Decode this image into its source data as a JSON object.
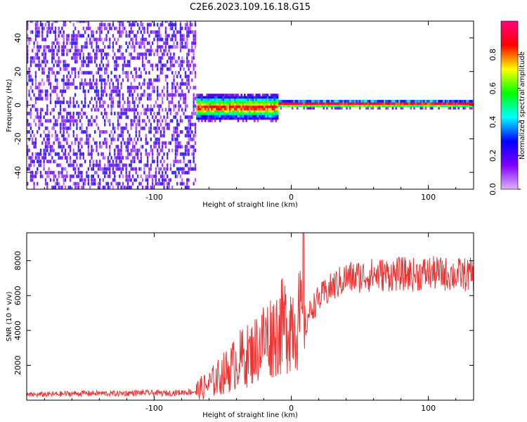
{
  "title": "C2E6.2023.109.16.18.G15",
  "chart_data": [
    {
      "type": "heatmap",
      "xlabel": "Height of straight line (km)",
      "ylabel": "Frequency (Hz)",
      "xlim": [
        -193,
        133
      ],
      "ylim": [
        -50,
        50
      ],
      "x_ticks": [
        -100,
        0,
        100
      ],
      "x_tick_labels": [
        "-100",
        "0",
        "100"
      ],
      "y_ticks": [
        -40,
        -20,
        0,
        20,
        40
      ],
      "y_tick_labels": [
        "-40",
        "-20",
        "0",
        "20",
        "40"
      ],
      "colorbar": {
        "label": "Normalized spectral amplitude",
        "range": [
          0,
          1
        ],
        "ticks": [
          0.0,
          0.2,
          0.4,
          0.6,
          0.8
        ],
        "tick_labels": [
          "0.0",
          "0.2",
          "0.4",
          "0.6",
          "0.8"
        ],
        "colors": [
          "#e0b0ff",
          "#7f00ff",
          "#0000ff",
          "#00ffff",
          "#00ff00",
          "#ffff00",
          "#ff0000",
          "#ff0080"
        ]
      },
      "regions": [
        {
          "x_range": [
            -193,
            -70
          ],
          "description_level": "noise",
          "amplitude": [
            0.05,
            0.3
          ]
        },
        {
          "x_range": [
            -70,
            -10
          ],
          "center_hz": -2,
          "amplitude": [
            0.3,
            0.9
          ]
        },
        {
          "x_range": [
            -10,
            133
          ],
          "center_hz": 0,
          "amplitude": [
            0.8,
            1.0
          ]
        }
      ]
    },
    {
      "type": "line",
      "xlabel": "Height of straight line (km)",
      "ylabel": "SNR (10 * v/v)",
      "xlim": [
        -193,
        133
      ],
      "ylim": [
        0,
        9600
      ],
      "x_ticks": [
        -100,
        0,
        100
      ],
      "x_tick_labels": [
        "-100",
        "0",
        "100"
      ],
      "y_ticks": [
        2000,
        4000,
        6000,
        8000
      ],
      "y_tick_labels": [
        "2000",
        "4000",
        "6000",
        "8000"
      ],
      "series": [
        {
          "color": "#ee3333",
          "x": [
            -193,
            -170,
            -150,
            -130,
            -110,
            -90,
            -80,
            -70,
            -60,
            -50,
            -45,
            -40,
            -35,
            -30,
            -25,
            -20,
            -15,
            -10,
            -5,
            0,
            5,
            8,
            9,
            10,
            12,
            15,
            20,
            30,
            40,
            50,
            60,
            70,
            80,
            90,
            100,
            110,
            120,
            133
          ],
          "y": [
            300,
            350,
            400,
            380,
            420,
            400,
            450,
            500,
            900,
            1500,
            1800,
            2200,
            2500,
            2600,
            3000,
            3500,
            3700,
            4000,
            4300,
            4600,
            4600,
            4400,
            9500,
            3500,
            4800,
            5300,
            5800,
            6500,
            7000,
            7100,
            7200,
            7200,
            7250,
            7200,
            7300,
            7250,
            7200,
            7200
          ]
        }
      ]
    }
  ]
}
